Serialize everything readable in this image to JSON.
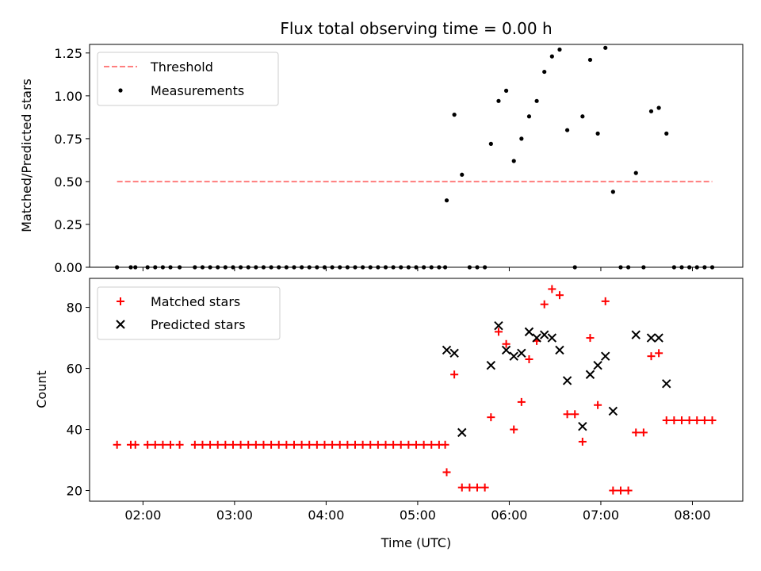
{
  "chart_data": [
    {
      "type": "scatter",
      "title": "Flux total observing time = 0.00 h",
      "xlabel": "",
      "ylabel": "Matched/Predicted stars",
      "xlim": [
        "01:25",
        "08:33"
      ],
      "ylim": [
        0,
        1.3
      ],
      "xticks": [
        "02:00",
        "03:00",
        "04:00",
        "05:00",
        "06:00",
        "07:00",
        "08:00"
      ],
      "yticks": [
        "0.00",
        "0.25",
        "0.50",
        "0.75",
        "1.00",
        "1.25"
      ],
      "yticks_values": [
        0,
        0.25,
        0.5,
        0.75,
        1.0,
        1.25
      ],
      "legend_position": "upper-left",
      "threshold": {
        "name": "Threshold",
        "value": 0.5,
        "x_range": [
          "01:43",
          "08:13"
        ],
        "color": "#ff7f7f",
        "style": "dashed"
      },
      "series": [
        {
          "name": "Measurements",
          "color": "#000000",
          "marker": "dot",
          "points": [
            [
              "01:43",
              0
            ],
            [
              "01:52",
              0
            ],
            [
              "01:55",
              0
            ],
            [
              "02:03",
              0
            ],
            [
              "02:08",
              0
            ],
            [
              "02:13",
              0
            ],
            [
              "02:18",
              0
            ],
            [
              "02:24",
              0
            ],
            [
              "02:34",
              0
            ],
            [
              "02:39",
              0
            ],
            [
              "02:44",
              0
            ],
            [
              "02:49",
              0
            ],
            [
              "02:54",
              0
            ],
            [
              "02:59",
              0
            ],
            [
              "03:04",
              0
            ],
            [
              "03:09",
              0
            ],
            [
              "03:14",
              0
            ],
            [
              "03:19",
              0
            ],
            [
              "03:24",
              0
            ],
            [
              "03:29",
              0
            ],
            [
              "03:34",
              0
            ],
            [
              "03:39",
              0
            ],
            [
              "03:44",
              0
            ],
            [
              "03:49",
              0
            ],
            [
              "03:54",
              0
            ],
            [
              "03:59",
              0
            ],
            [
              "04:04",
              0
            ],
            [
              "04:09",
              0
            ],
            [
              "04:14",
              0
            ],
            [
              "04:19",
              0
            ],
            [
              "04:24",
              0
            ],
            [
              "04:29",
              0
            ],
            [
              "04:34",
              0
            ],
            [
              "04:39",
              0
            ],
            [
              "04:44",
              0
            ],
            [
              "04:49",
              0
            ],
            [
              "04:54",
              0
            ],
            [
              "04:59",
              0
            ],
            [
              "05:04",
              0
            ],
            [
              "05:09",
              0
            ],
            [
              "05:14",
              0
            ],
            [
              "05:18",
              0
            ],
            [
              "05:19",
              0.39
            ],
            [
              "05:24",
              0.89
            ],
            [
              "05:29",
              0.54
            ],
            [
              "05:34",
              0
            ],
            [
              "05:39",
              0
            ],
            [
              "05:44",
              0
            ],
            [
              "05:48",
              0.72
            ],
            [
              "05:53",
              0.97
            ],
            [
              "05:58",
              1.03
            ],
            [
              "06:03",
              0.62
            ],
            [
              "06:08",
              0.75
            ],
            [
              "06:13",
              0.88
            ],
            [
              "06:18",
              0.97
            ],
            [
              "06:23",
              1.14
            ],
            [
              "06:28",
              1.23
            ],
            [
              "06:33",
              1.27
            ],
            [
              "06:38",
              0.8
            ],
            [
              "06:43",
              0
            ],
            [
              "06:48",
              0.88
            ],
            [
              "06:53",
              1.21
            ],
            [
              "06:58",
              0.78
            ],
            [
              "07:03",
              1.28
            ],
            [
              "07:08",
              0.44
            ],
            [
              "07:13",
              0
            ],
            [
              "07:18",
              0
            ],
            [
              "07:23",
              0.55
            ],
            [
              "07:28",
              0
            ],
            [
              "07:33",
              0.91
            ],
            [
              "07:38",
              0.93
            ],
            [
              "07:43",
              0.78
            ],
            [
              "07:48",
              0
            ],
            [
              "07:53",
              0
            ],
            [
              "07:58",
              0
            ],
            [
              "08:03",
              0
            ],
            [
              "08:08",
              0
            ],
            [
              "08:13",
              0
            ]
          ]
        }
      ]
    },
    {
      "type": "scatter",
      "title": "",
      "xlabel": "Time (UTC)",
      "ylabel": "Count",
      "xlim": [
        "01:25",
        "08:33"
      ],
      "ylim": [
        16.5,
        89.5
      ],
      "xticks": [
        "02:00",
        "03:00",
        "04:00",
        "05:00",
        "06:00",
        "07:00",
        "08:00"
      ],
      "yticks": [
        "20",
        "40",
        "60",
        "80"
      ],
      "yticks_values": [
        20,
        40,
        60,
        80
      ],
      "legend_position": "upper-left",
      "series": [
        {
          "name": "Matched stars",
          "color": "#ff0000",
          "marker": "plus",
          "points": [
            [
              "01:43",
              35
            ],
            [
              "01:52",
              35
            ],
            [
              "01:55",
              35
            ],
            [
              "02:03",
              35
            ],
            [
              "02:08",
              35
            ],
            [
              "02:13",
              35
            ],
            [
              "02:18",
              35
            ],
            [
              "02:24",
              35
            ],
            [
              "02:34",
              35
            ],
            [
              "02:39",
              35
            ],
            [
              "02:44",
              35
            ],
            [
              "02:49",
              35
            ],
            [
              "02:54",
              35
            ],
            [
              "02:59",
              35
            ],
            [
              "03:04",
              35
            ],
            [
              "03:09",
              35
            ],
            [
              "03:14",
              35
            ],
            [
              "03:19",
              35
            ],
            [
              "03:24",
              35
            ],
            [
              "03:29",
              35
            ],
            [
              "03:34",
              35
            ],
            [
              "03:39",
              35
            ],
            [
              "03:44",
              35
            ],
            [
              "03:49",
              35
            ],
            [
              "03:54",
              35
            ],
            [
              "03:59",
              35
            ],
            [
              "04:04",
              35
            ],
            [
              "04:09",
              35
            ],
            [
              "04:14",
              35
            ],
            [
              "04:19",
              35
            ],
            [
              "04:24",
              35
            ],
            [
              "04:29",
              35
            ],
            [
              "04:34",
              35
            ],
            [
              "04:39",
              35
            ],
            [
              "04:44",
              35
            ],
            [
              "04:49",
              35
            ],
            [
              "04:54",
              35
            ],
            [
              "04:59",
              35
            ],
            [
              "05:04",
              35
            ],
            [
              "05:09",
              35
            ],
            [
              "05:14",
              35
            ],
            [
              "05:18",
              35
            ],
            [
              "05:19",
              26
            ],
            [
              "05:24",
              58
            ],
            [
              "05:29",
              21
            ],
            [
              "05:34",
              21
            ],
            [
              "05:39",
              21
            ],
            [
              "05:44",
              21
            ],
            [
              "05:48",
              44
            ],
            [
              "05:53",
              72
            ],
            [
              "05:58",
              68
            ],
            [
              "06:03",
              40
            ],
            [
              "06:08",
              49
            ],
            [
              "06:13",
              63
            ],
            [
              "06:18",
              69
            ],
            [
              "06:23",
              81
            ],
            [
              "06:28",
              86
            ],
            [
              "06:33",
              84
            ],
            [
              "06:38",
              45
            ],
            [
              "06:43",
              45
            ],
            [
              "06:48",
              36
            ],
            [
              "06:53",
              70
            ],
            [
              "06:58",
              48
            ],
            [
              "07:03",
              82
            ],
            [
              "07:08",
              20
            ],
            [
              "07:13",
              20
            ],
            [
              "07:18",
              20
            ],
            [
              "07:23",
              39
            ],
            [
              "07:28",
              39
            ],
            [
              "07:33",
              64
            ],
            [
              "07:38",
              65
            ],
            [
              "07:43",
              43
            ],
            [
              "07:48",
              43
            ],
            [
              "07:53",
              43
            ],
            [
              "07:58",
              43
            ],
            [
              "08:03",
              43
            ],
            [
              "08:08",
              43
            ],
            [
              "08:13",
              43
            ]
          ]
        },
        {
          "name": "Predicted stars",
          "color": "#000000",
          "marker": "x",
          "points": [
            [
              "05:19",
              66
            ],
            [
              "05:24",
              65
            ],
            [
              "05:29",
              39
            ],
            [
              "05:48",
              61
            ],
            [
              "05:53",
              74
            ],
            [
              "05:58",
              66
            ],
            [
              "06:03",
              64
            ],
            [
              "06:08",
              65
            ],
            [
              "06:13",
              72
            ],
            [
              "06:18",
              70
            ],
            [
              "06:23",
              71
            ],
            [
              "06:28",
              70
            ],
            [
              "06:33",
              66
            ],
            [
              "06:38",
              56
            ],
            [
              "06:48",
              41
            ],
            [
              "06:53",
              58
            ],
            [
              "06:58",
              61
            ],
            [
              "07:03",
              64
            ],
            [
              "07:08",
              46
            ],
            [
              "07:23",
              71
            ],
            [
              "07:33",
              70
            ],
            [
              "07:38",
              70
            ],
            [
              "07:43",
              55
            ]
          ]
        }
      ]
    }
  ]
}
